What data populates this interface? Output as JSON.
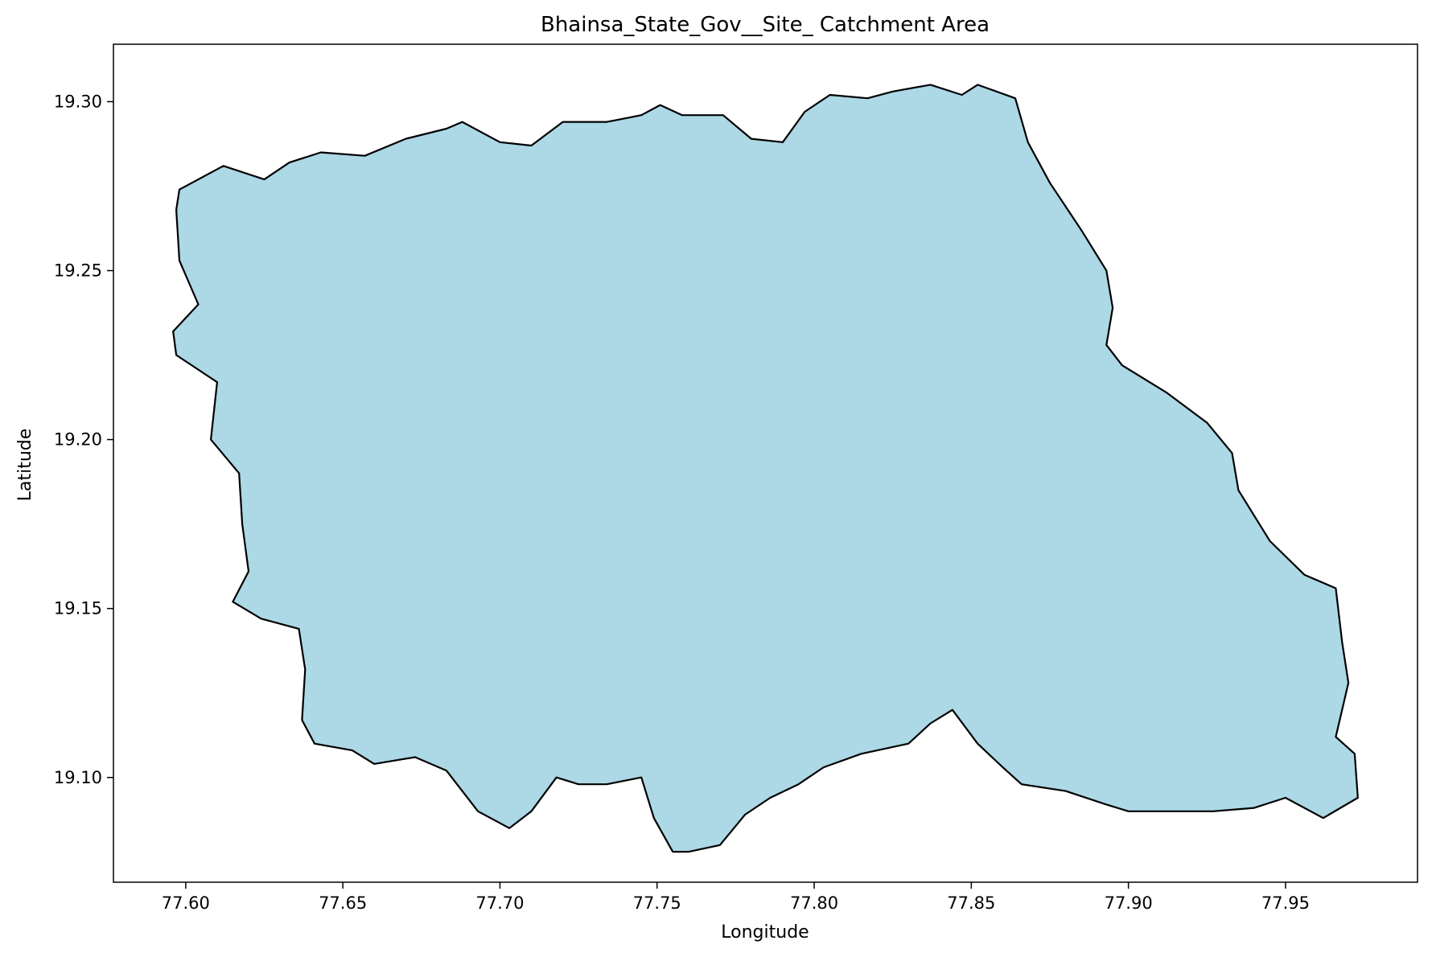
{
  "chart_data": {
    "type": "area",
    "title": "Bhainsa_State_Gov__Site_ Catchment Area",
    "xlabel": "Longitude",
    "ylabel": "Latitude",
    "xlim": [
      77.577,
      77.992
    ],
    "ylim": [
      19.069,
      19.317
    ],
    "xticks": [
      77.6,
      77.65,
      77.7,
      77.75,
      77.8,
      77.85,
      77.9,
      77.95
    ],
    "xtick_labels": [
      "77.60",
      "77.65",
      "77.70",
      "77.75",
      "77.80",
      "77.85",
      "77.90",
      "77.95"
    ],
    "yticks": [
      19.1,
      19.15,
      19.2,
      19.25,
      19.3
    ],
    "ytick_labels": [
      "19.10",
      "19.15",
      "19.20",
      "19.25",
      "19.30"
    ],
    "grid": false,
    "series": [
      {
        "fill_color": "#add8e6",
        "edge_color": "#000000",
        "boundary": [
          [
            77.598,
            19.274
          ],
          [
            77.612,
            19.281
          ],
          [
            77.625,
            19.277
          ],
          [
            77.633,
            19.282
          ],
          [
            77.643,
            19.285
          ],
          [
            77.657,
            19.284
          ],
          [
            77.67,
            19.289
          ],
          [
            77.683,
            19.292
          ],
          [
            77.688,
            19.294
          ],
          [
            77.7,
            19.288
          ],
          [
            77.71,
            19.287
          ],
          [
            77.72,
            19.294
          ],
          [
            77.734,
            19.294
          ],
          [
            77.745,
            19.296
          ],
          [
            77.751,
            19.299
          ],
          [
            77.758,
            19.296
          ],
          [
            77.771,
            19.296
          ],
          [
            77.78,
            19.289
          ],
          [
            77.79,
            19.288
          ],
          [
            77.797,
            19.297
          ],
          [
            77.805,
            19.302
          ],
          [
            77.817,
            19.301
          ],
          [
            77.825,
            19.303
          ],
          [
            77.837,
            19.305
          ],
          [
            77.847,
            19.302
          ],
          [
            77.852,
            19.305
          ],
          [
            77.864,
            19.301
          ],
          [
            77.868,
            19.288
          ],
          [
            77.875,
            19.276
          ],
          [
            77.885,
            19.262
          ],
          [
            77.893,
            19.25
          ],
          [
            77.895,
            19.239
          ],
          [
            77.893,
            19.228
          ],
          [
            77.898,
            19.222
          ],
          [
            77.912,
            19.214
          ],
          [
            77.925,
            19.205
          ],
          [
            77.933,
            19.196
          ],
          [
            77.935,
            19.185
          ],
          [
            77.945,
            19.17
          ],
          [
            77.956,
            19.16
          ],
          [
            77.966,
            19.156
          ],
          [
            77.968,
            19.14
          ],
          [
            77.97,
            19.128
          ],
          [
            77.966,
            19.112
          ],
          [
            77.972,
            19.107
          ],
          [
            77.973,
            19.094
          ],
          [
            77.962,
            19.088
          ],
          [
            77.95,
            19.094
          ],
          [
            77.94,
            19.091
          ],
          [
            77.927,
            19.09
          ],
          [
            77.915,
            19.09
          ],
          [
            77.9,
            19.09
          ],
          [
            77.893,
            19.092
          ],
          [
            77.88,
            19.096
          ],
          [
            77.866,
            19.098
          ],
          [
            77.86,
            19.103
          ],
          [
            77.852,
            19.11
          ],
          [
            77.844,
            19.12
          ],
          [
            77.837,
            19.116
          ],
          [
            77.83,
            19.11
          ],
          [
            77.815,
            19.107
          ],
          [
            77.803,
            19.103
          ],
          [
            77.795,
            19.098
          ],
          [
            77.786,
            19.094
          ],
          [
            77.778,
            19.089
          ],
          [
            77.77,
            19.08
          ],
          [
            77.76,
            19.078
          ],
          [
            77.755,
            19.078
          ],
          [
            77.749,
            19.088
          ],
          [
            77.745,
            19.1
          ],
          [
            77.734,
            19.098
          ],
          [
            77.725,
            19.098
          ],
          [
            77.718,
            19.1
          ],
          [
            77.71,
            19.09
          ],
          [
            77.703,
            19.085
          ],
          [
            77.693,
            19.09
          ],
          [
            77.683,
            19.102
          ],
          [
            77.673,
            19.106
          ],
          [
            77.66,
            19.104
          ],
          [
            77.653,
            19.108
          ],
          [
            77.641,
            19.11
          ],
          [
            77.637,
            19.117
          ],
          [
            77.638,
            19.132
          ],
          [
            77.636,
            19.144
          ],
          [
            77.624,
            19.147
          ],
          [
            77.615,
            19.152
          ],
          [
            77.62,
            19.161
          ],
          [
            77.618,
            19.175
          ],
          [
            77.617,
            19.19
          ],
          [
            77.608,
            19.2
          ],
          [
            77.61,
            19.217
          ],
          [
            77.597,
            19.225
          ],
          [
            77.596,
            19.232
          ],
          [
            77.604,
            19.24
          ],
          [
            77.598,
            19.253
          ],
          [
            77.597,
            19.268
          ]
        ]
      }
    ]
  }
}
